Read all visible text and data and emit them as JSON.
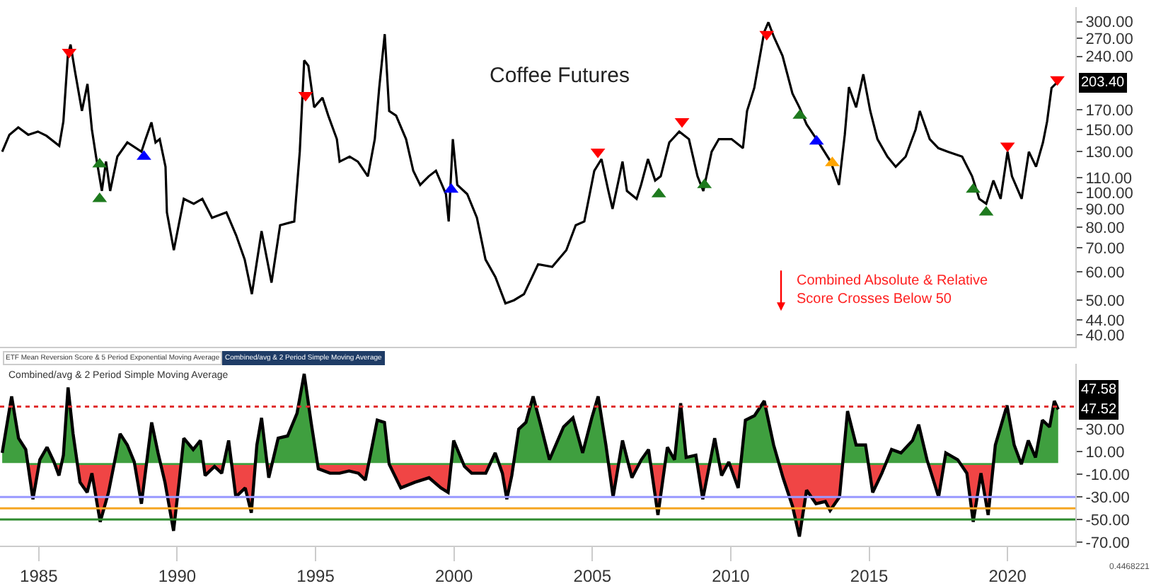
{
  "chart_data": [
    {
      "type": "line",
      "title": "Coffee Futures",
      "log": true,
      "tick_labels": "y",
      "xlim": [
        1983.6,
        2022.45
      ],
      "ylim": [
        37,
        330
      ],
      "yticks": [
        {
          "value": 300,
          "label": "300.00"
        },
        {
          "value": 270,
          "label": "270.00"
        },
        {
          "value": 240,
          "label": "240.00"
        },
        {
          "value": 170,
          "label": "170.00"
        },
        {
          "value": 150,
          "label": "150.00"
        },
        {
          "value": 130,
          "label": "130.00"
        },
        {
          "value": 110,
          "label": "110.00"
        },
        {
          "value": 100,
          "label": "100.00"
        },
        {
          "value": 90,
          "label": "90.00"
        },
        {
          "value": 80,
          "label": "80.00"
        },
        {
          "value": 70,
          "label": "70.00"
        },
        {
          "value": 60,
          "label": "60.00"
        },
        {
          "value": 50,
          "label": "50.00"
        },
        {
          "value": 44,
          "label": "44.00"
        },
        {
          "value": 40,
          "label": "40.00"
        }
      ],
      "series": [
        {
          "color": "#000000",
          "marker": "none",
          "x": [
            1983.68,
            1983.94,
            1984.26,
            1984.62,
            1984.97,
            1985.28,
            1985.74,
            1985.89,
            1986.05,
            1986.15,
            1986.3,
            1986.56,
            1986.76,
            1986.92,
            1987.07,
            1987.28,
            1987.43,
            1987.58,
            1987.84,
            1988.2,
            1988.71,
            1988.86,
            1989.07,
            1989.22,
            1989.37,
            1989.58,
            1989.63,
            1989.88,
            1990.24,
            1990.6,
            1990.91,
            1991.26,
            1991.78,
            1992.13,
            1992.44,
            1992.7,
            1993.05,
            1993.41,
            1993.72,
            1994.23,
            1994.43,
            1994.59,
            1994.74,
            1994.95,
            1995.25,
            1995.46,
            1995.77,
            1995.87,
            1996.23,
            1996.53,
            1996.89,
            1997.14,
            1997.3,
            1997.5,
            1997.66,
            1997.91,
            1998.27,
            1998.53,
            1998.78,
            1999.09,
            1999.35,
            1999.71,
            1999.81,
            1999.96,
            2000.12,
            2000.48,
            2000.83,
            2001.14,
            2001.5,
            2001.86,
            2002.17,
            2002.53,
            2003.04,
            2003.55,
            2004.06,
            2004.4,
            2004.71,
            2005.07,
            2005.33,
            2005.58,
            2005.73,
            2006.09,
            2006.25,
            2006.6,
            2006.76,
            2007.01,
            2007.27,
            2007.47,
            2007.78,
            2008.14,
            2008.49,
            2008.8,
            2009.01,
            2009.31,
            2009.57,
            2010.03,
            2010.44,
            2010.59,
            2010.85,
            2011.21,
            2011.36,
            2011.56,
            2011.87,
            2012.23,
            2012.48,
            2012.74,
            2013.1,
            2013.61,
            2013.91,
            2014.12,
            2014.27,
            2014.53,
            2014.79,
            2015.04,
            2015.3,
            2015.66,
            2015.96,
            2016.32,
            2016.68,
            2016.83,
            2017.19,
            2017.5,
            2017.85,
            2018.36,
            2018.72,
            2018.98,
            2019.23,
            2019.49,
            2019.75,
            2020.0,
            2020.16,
            2020.51,
            2020.77,
            2021.03,
            2021.28,
            2021.43,
            2021.59,
            2021.8
          ],
          "values": [
            130,
            145,
            152,
            145,
            148,
            144,
            135,
            158,
            241,
            259,
            220,
            169,
            201,
            150,
            126,
            101,
            122,
            101,
            126,
            138,
            130,
            141,
            157,
            138,
            141,
            118,
            88,
            69,
            96,
            93,
            96,
            85,
            88,
            76,
            65,
            52,
            78,
            56,
            81,
            83,
            130,
            234,
            226,
            173,
            184,
            164,
            141,
            122,
            126,
            122,
            111,
            141,
            196,
            277,
            169,
            164,
            141,
            115,
            105,
            111,
            115,
            99,
            83,
            141,
            105,
            99,
            85,
            65,
            58,
            49,
            50,
            52,
            63,
            62,
            69,
            81,
            83,
            115,
            124,
            101,
            90,
            122,
            101,
            96,
            105,
            124,
            108,
            111,
            138,
            148,
            141,
            111,
            101,
            130,
            141,
            141,
            133,
            169,
            196,
            281,
            299,
            272,
            241,
            189,
            173,
            155,
            141,
            122,
            105,
            145,
            197,
            173,
            214,
            169,
            141,
            126,
            118,
            126,
            150,
            169,
            141,
            133,
            130,
            126,
            111,
            96,
            93,
            108,
            96,
            130,
            111,
            96,
            130,
            118,
            138,
            158,
            196,
            203.4
          ]
        },
        {
          "type": "scatter",
          "color": "#ff0000",
          "marker": "triangle-down",
          "x": [
            1986.1,
            1994.64,
            2005.2,
            2008.24,
            2011.3,
            2020.0,
            2021.8
          ],
          "values": [
            247,
            187,
            130,
            158,
            277,
            135,
            207
          ]
        },
        {
          "type": "scatter",
          "color": "#1e7a1e",
          "marker": "triangle",
          "x": [
            1987.2,
            1987.2,
            2007.4,
            2009.05,
            2012.5,
            2018.76,
            2019.23
          ],
          "values": [
            120,
            96,
            99,
            105,
            164,
            102,
            88
          ]
        },
        {
          "type": "scatter",
          "color": "#0000ff",
          "marker": "triangle",
          "x": [
            1988.8,
            1999.9,
            2013.1
          ],
          "values": [
            126,
            102,
            139
          ]
        },
        {
          "type": "scatter",
          "color": "#ffa500",
          "marker": "triangle",
          "x": [
            2013.67
          ],
          "values": [
            121
          ]
        }
      ],
      "annotations": [
        {
          "text": "203.40",
          "y": 203.4
        },
        "Combined Absolute & Relative\nScore Crosses Below 50",
        "ETF Mean Reversion Score & 5 Period Exponential Moving Average",
        "Combined/avg & 2 Period Simple Moving Average"
      ]
    },
    {
      "type": "area",
      "title": "Combined/avg & 2 Period Simple Moving Average",
      "tick_labels": "xy",
      "xlim": [
        1983.6,
        2022.45
      ],
      "ylim": [
        -73,
        88
      ],
      "xticks": [
        1985,
        1990,
        1995,
        2000,
        2005,
        2010,
        2015,
        2020
      ],
      "yticks": [
        {
          "value": 30,
          "label": "30.00"
        },
        {
          "value": 10,
          "label": "10.00"
        },
        {
          "value": -10,
          "label": "-10.00"
        },
        {
          "value": -30,
          "label": "-30.00"
        },
        {
          "value": -50,
          "label": "-50.00"
        },
        {
          "value": -70,
          "label": "-70.00"
        }
      ],
      "ref_lines": [
        {
          "axis": "y",
          "value": 50,
          "color": "#e03030",
          "line_style": "dotted"
        },
        {
          "axis": "y",
          "value": -30,
          "color": "#9999ff",
          "line_style": "solid"
        },
        {
          "axis": "y",
          "value": -40,
          "color": "#f5a623",
          "line_style": "solid"
        },
        {
          "axis": "y",
          "value": -50,
          "color": "#2e8b2e",
          "line_style": "solid"
        }
      ],
      "series": [
        {
          "color": "#000000",
          "colors": [
            "#3f9f3f",
            "#3f9f3f",
            "#3f9f3f",
            "#3f9f3f",
            "#f04545",
            "#3f9f3f",
            "#3f9f3f",
            "#3f9f3f",
            "#f04545",
            "#3f9f3f",
            "#3f9f3f",
            "#3f9f3f",
            "#f04545",
            "#f04545",
            "#f04545",
            "#f04545",
            "#f04545",
            "#3f9f3f",
            "#3f9f3f",
            "#3f9f3f",
            "#f04545",
            "#3f9f3f",
            "#3f9f3f",
            "#f04545",
            "#f04545",
            "#f04545",
            "#3f9f3f",
            "#3f9f3f",
            "#3f9f3f",
            "#f04545",
            "#f04545",
            "#f04545",
            "#3f9f3f",
            "#f04545",
            "#f04545",
            "#f04545",
            "#3f9f3f",
            "#3f9f3f",
            "#f04545",
            "#3f9f3f",
            "#3f9f3f",
            "#3f9f3f",
            "#3f9f3f",
            "#3f9f3f",
            "#f04545",
            "#f04545",
            "#f04545",
            "#f04545",
            "#f04545",
            "#f04545",
            "#3f9f3f",
            "#3f9f3f",
            "#f04545",
            "#f04545",
            "#f04545",
            "#f04545",
            "#f04545",
            "#f04545",
            "#3f9f3f",
            "#f04545",
            "#f04545",
            "#f04545",
            "#3f9f3f",
            "#f04545",
            "#f04545",
            "#f04545",
            "#3f9f3f",
            "#3f9f3f",
            "#3f9f3f",
            "#3f9f3f",
            "#3f9f3f",
            "#3f9f3f",
            "#3f9f3f",
            "#3f9f3f",
            "#3f9f3f",
            "#3f9f3f",
            "#3f9f3f",
            "#f04545",
            "#3f9f3f",
            "#f04545",
            "#3f9f3f",
            "#3f9f3f",
            "#f04545",
            "#3f9f3f",
            "#3f9f3f",
            "#3f9f3f",
            "#3f9f3f",
            "#3f9f3f",
            "#f04545",
            "#3f9f3f",
            "#f04545",
            "#3f9f3f",
            "#f04545",
            "#3f9f3f",
            "#3f9f3f",
            "#3f9f3f",
            "#3f9f3f",
            "#f04545",
            "#f04545",
            "#f04545",
            "#f04545",
            "#f04545",
            "#f04545",
            "#f04545",
            "#f04545",
            "#3f9f3f",
            "#3f9f3f",
            "#3f9f3f",
            "#f04545",
            "#f04545",
            "#3f9f3f",
            "#3f9f3f",
            "#3f9f3f",
            "#3f9f3f",
            "#3f9f3f",
            "#f04545",
            "#3f9f3f",
            "#3f9f3f",
            "#f04545",
            "#f04545",
            "#f04545",
            "#f04545",
            "#3f9f3f",
            "#3f9f3f",
            "#3f9f3f",
            "#f04545",
            "#3f9f3f",
            "#3f9f3f",
            "#3f9f3f",
            "#3f9f3f",
            "#3f9f3f",
            "#3f9f3f"
          ],
          "x": [
            1983.68,
            1984.02,
            1984.27,
            1984.53,
            1984.79,
            1985.04,
            1985.3,
            1985.55,
            1985.73,
            1985.89,
            1986.06,
            1986.24,
            1986.49,
            1986.75,
            1986.92,
            1987.22,
            1987.52,
            1987.94,
            1988.2,
            1988.45,
            1988.71,
            1989.08,
            1989.31,
            1989.56,
            1989.87,
            1990.07,
            1990.24,
            1990.58,
            1990.84,
            1991.01,
            1991.35,
            1991.61,
            1991.86,
            1992.12,
            1992.46,
            1992.68,
            1992.88,
            1993.05,
            1993.31,
            1993.65,
            1993.99,
            1994.33,
            1994.59,
            1994.84,
            1995.1,
            1995.52,
            1995.87,
            1996.21,
            1996.55,
            1996.8,
            1997.23,
            1997.49,
            1997.66,
            1998.08,
            1998.59,
            1999.1,
            1999.53,
            1999.79,
            1999.99,
            2000.38,
            2000.64,
            2001.15,
            2001.49,
            2001.75,
            2001.91,
            2002.09,
            2002.34,
            2002.6,
            2002.86,
            2003.11,
            2003.45,
            2003.96,
            2004.3,
            2004.65,
            2004.98,
            2005.21,
            2005.49,
            2005.75,
            2006.09,
            2006.43,
            2006.77,
            2007.03,
            2007.37,
            2007.71,
            2007.97,
            2008.19,
            2008.39,
            2008.74,
            2008.99,
            2009.42,
            2009.67,
            2009.93,
            2010.27,
            2010.53,
            2010.86,
            2011.21,
            2011.55,
            2011.89,
            2012.23,
            2012.48,
            2012.74,
            2013.08,
            2013.42,
            2013.59,
            2013.93,
            2014.22,
            2014.53,
            2014.87,
            2015.13,
            2015.46,
            2015.81,
            2016.15,
            2016.57,
            2016.79,
            2017.09,
            2017.51,
            2017.77,
            2018.2,
            2018.53,
            2018.76,
            2019.04,
            2019.3,
            2019.56,
            2019.98,
            2020.24,
            2020.5,
            2020.75,
            2021.01,
            2021.26,
            2021.52,
            2021.69,
            2021.83
          ],
          "values": [
            9,
            59,
            22,
            12,
            -32,
            3,
            14,
            1,
            -11,
            7,
            67,
            26,
            -17,
            -26,
            -9,
            -52,
            -26,
            26,
            16,
            1,
            -36,
            36,
            9,
            -17,
            -60,
            -17,
            22,
            12,
            20,
            -11,
            -3,
            -9,
            20,
            -30,
            -22,
            -44,
            16,
            40,
            -13,
            22,
            24,
            44,
            79,
            36,
            -5,
            -9,
            -9,
            -7,
            -9,
            -15,
            38,
            36,
            -1,
            -22,
            -17,
            -13,
            -22,
            -26,
            20,
            -3,
            -9,
            -9,
            9,
            -9,
            -32,
            -11,
            30,
            36,
            59,
            36,
            3,
            32,
            40,
            9,
            40,
            59,
            16,
            -30,
            20,
            -13,
            3,
            12,
            -46,
            14,
            3,
            53,
            5,
            7,
            -32,
            22,
            -11,
            1,
            -22,
            38,
            42,
            55,
            16,
            -13,
            -38,
            -65,
            -24,
            -36,
            -34,
            -42,
            -30,
            46,
            16,
            16,
            -26,
            -9,
            12,
            9,
            20,
            34,
            3,
            -30,
            9,
            3,
            -9,
            -52,
            -9,
            -46,
            16,
            51,
            16,
            -1,
            20,
            5,
            38,
            32,
            55,
            47.52
          ]
        }
      ],
      "annotations": [
        "47.58",
        "47.52",
        "0.4468221"
      ]
    }
  ]
}
